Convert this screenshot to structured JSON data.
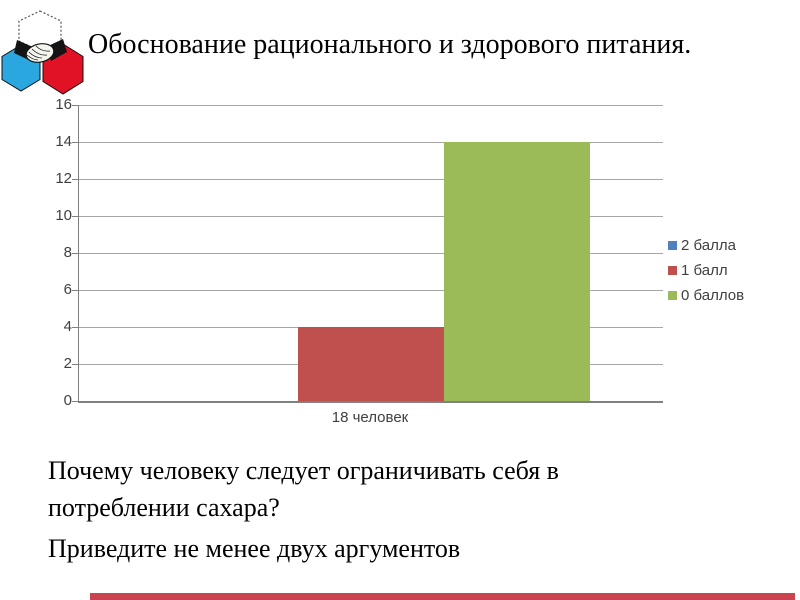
{
  "slide": {
    "title": "Обоснование рационального и здорового питания.",
    "question": {
      "line1": "Почему человеку следует ограничивать себя в потреблении сахара?",
      "line2": "Приведите не менее двух аргументов"
    }
  },
  "logo": {
    "hex_top_color": "#FFFFFF",
    "hex_left_color": "#2AA7DF",
    "hex_right_color": "#E21226"
  },
  "chart_data": {
    "type": "bar",
    "title": "",
    "categories": [
      "18 человек"
    ],
    "series": [
      {
        "name": "2 балла",
        "color": "#4F81BD",
        "values": [
          0
        ]
      },
      {
        "name": "1 балл",
        "color": "#C0504D",
        "values": [
          4
        ]
      },
      {
        "name": "0 баллов",
        "color": "#9BBB59",
        "values": [
          14
        ]
      }
    ],
    "ylim": [
      0,
      16
    ],
    "yticks": [
      0,
      2,
      4,
      6,
      8,
      10,
      12,
      14,
      16
    ],
    "grid": true,
    "legend_position": "right",
    "gridline_color": "#A6A6A6",
    "axis_color": "#808080",
    "tick_label_color": "#3F3F3F"
  },
  "accent_bar_color": "#C9444E"
}
